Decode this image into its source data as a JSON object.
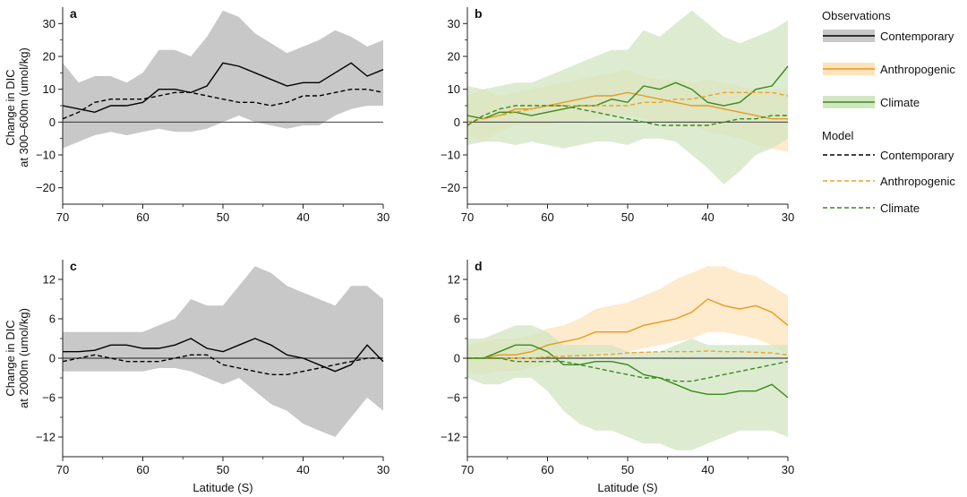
{
  "figure": {
    "xlabel": "Latitude (S)",
    "ylabel_top_line1": "Change in DIC",
    "ylabel_top_line2": "at 300–600m (umol/kg)",
    "ylabel_bottom_line1": "Change in DIC",
    "ylabel_bottom_line2": "at 2000m (umol/kg)"
  },
  "legend": {
    "obs_title": "Observations",
    "model_title": "Model",
    "obs_items": [
      {
        "label": "Contemporary",
        "color": "#000000",
        "band": "#c8c8c8"
      },
      {
        "label": "Anthropogenic",
        "color": "#e69a1c",
        "band": "#fde3bb"
      },
      {
        "label": "Climate",
        "color": "#3a8a1c",
        "band": "#d2e6c2"
      }
    ],
    "model_items": [
      {
        "label": "Contemporary",
        "color": "#000000"
      },
      {
        "label": "Anthropogenic",
        "color": "#f0a020"
      },
      {
        "label": "Climate",
        "color": "#3a8a1c"
      }
    ]
  },
  "chart_data": [
    {
      "type": "line",
      "panel": "a",
      "xlim": [
        70,
        30
      ],
      "ylim": [
        -25,
        35
      ],
      "yticks": [
        -20,
        -10,
        0,
        10,
        20,
        30
      ],
      "xticks": [
        70,
        60,
        50,
        40,
        30
      ],
      "x": [
        70,
        68,
        66,
        64,
        62,
        60,
        58,
        56,
        54,
        52,
        50,
        48,
        46,
        44,
        42,
        40,
        38,
        36,
        34,
        32,
        30
      ],
      "series": [
        {
          "name": "Observations Contemporary",
          "style": "solid",
          "color": "#000000",
          "band": "#c8c8c8",
          "values": [
            5,
            4,
            3,
            5,
            5,
            6,
            10,
            10,
            9,
            11,
            18,
            17,
            15,
            13,
            11,
            12,
            12,
            15,
            18,
            14,
            16
          ],
          "lower": [
            -8,
            -6,
            -4,
            -3,
            -4,
            -3,
            -2,
            -3,
            -3,
            -2,
            0,
            2,
            0,
            -1,
            -2,
            -1,
            -1,
            2,
            4,
            5,
            5
          ],
          "upper": [
            18,
            12,
            14,
            14,
            12,
            15,
            22,
            22,
            20,
            26,
            34,
            32,
            27,
            24,
            21,
            23,
            25,
            28,
            26,
            23,
            25
          ]
        },
        {
          "name": "Model Contemporary",
          "style": "dashed",
          "color": "#000000",
          "values": [
            1,
            3,
            6,
            7,
            7,
            7,
            8,
            9,
            9,
            8,
            7,
            6,
            6,
            5,
            6,
            8,
            8,
            9,
            10,
            10,
            9
          ]
        }
      ]
    },
    {
      "type": "line",
      "panel": "b",
      "xlim": [
        70,
        30
      ],
      "ylim": [
        -25,
        35
      ],
      "yticks": [
        -20,
        -10,
        0,
        10,
        20,
        30
      ],
      "xticks": [
        70,
        60,
        50,
        40,
        30
      ],
      "x": [
        70,
        68,
        66,
        64,
        62,
        60,
        58,
        56,
        54,
        52,
        50,
        48,
        46,
        44,
        42,
        40,
        38,
        36,
        34,
        32,
        30
      ],
      "series": [
        {
          "name": "Observations Anthropogenic",
          "style": "solid",
          "color": "#e69a1c",
          "band": "#fde3bb",
          "values": [
            2,
            1,
            2,
            4,
            4,
            5,
            6,
            7,
            8,
            8,
            9,
            8,
            7,
            6,
            5,
            5,
            4,
            3,
            2,
            1,
            1
          ],
          "lower": [
            -4,
            -6,
            -3,
            -1,
            -1,
            -1,
            0,
            0,
            1,
            2,
            2,
            1,
            0,
            -1,
            -1,
            -3,
            -4,
            -5,
            -7,
            -8,
            -9
          ],
          "upper": [
            8,
            10,
            8,
            9,
            10,
            11,
            12,
            13,
            14,
            15,
            16,
            14,
            13,
            13,
            12,
            13,
            12,
            11,
            10,
            10,
            10
          ]
        },
        {
          "name": "Observations Climate",
          "style": "solid",
          "color": "#3a8a1c",
          "band": "#d2e6c2",
          "values": [
            2,
            1,
            3,
            3,
            2,
            3,
            4,
            5,
            5,
            7,
            6,
            11,
            10,
            12,
            10,
            6,
            5,
            6,
            10,
            11,
            17
          ],
          "lower": [
            -7,
            -6,
            -6,
            -7,
            -6,
            -7,
            -8,
            -7,
            -6,
            -6,
            -7,
            -5,
            -5,
            -6,
            -10,
            -14,
            -19,
            -15,
            -10,
            -8,
            -5
          ],
          "upper": [
            11,
            10,
            11,
            12,
            12,
            14,
            16,
            18,
            20,
            22,
            22,
            28,
            26,
            30,
            34,
            30,
            26,
            24,
            26,
            28,
            31
          ]
        },
        {
          "name": "Model Anthropogenic",
          "style": "dashed",
          "color": "#f0a020",
          "values": [
            0,
            1,
            2,
            3,
            4,
            5,
            5,
            5,
            5,
            5,
            5,
            6,
            6,
            7,
            7,
            8,
            9,
            9,
            9,
            9,
            8
          ]
        },
        {
          "name": "Model Climate",
          "style": "dashed",
          "color": "#3a8a1c",
          "values": [
            -1,
            2,
            4,
            5,
            5,
            5,
            5,
            4,
            3,
            2,
            1,
            0,
            -1,
            -1,
            -1,
            -1,
            0,
            1,
            1,
            2,
            2
          ]
        }
      ]
    },
    {
      "type": "line",
      "panel": "c",
      "xlim": [
        70,
        30
      ],
      "ylim": [
        -15,
        15
      ],
      "yticks": [
        -12,
        -6,
        0,
        6,
        12
      ],
      "xticks": [
        70,
        60,
        50,
        40,
        30
      ],
      "x": [
        70,
        68,
        66,
        64,
        62,
        60,
        58,
        56,
        54,
        52,
        50,
        48,
        46,
        44,
        42,
        40,
        38,
        36,
        34,
        32,
        30
      ],
      "series": [
        {
          "name": "Observations Contemporary",
          "style": "solid",
          "color": "#000000",
          "band": "#c8c8c8",
          "values": [
            1,
            1,
            1.2,
            2,
            2,
            1.5,
            1.5,
            2,
            3,
            1.5,
            1,
            2,
            3,
            2,
            0.5,
            0,
            -1,
            -2,
            -1,
            2,
            -0.5
          ],
          "lower": [
            -2,
            -2,
            -2,
            -2,
            -2,
            -2,
            -1.5,
            -1.5,
            -2,
            -3,
            -4,
            -3,
            -5,
            -7,
            -8,
            -10,
            -11,
            -12,
            -9,
            -6,
            -8
          ],
          "upper": [
            4,
            4,
            4,
            4,
            4,
            4,
            5,
            6,
            9,
            8,
            8,
            11,
            14,
            13,
            11,
            10,
            9,
            8,
            11,
            11,
            9
          ]
        },
        {
          "name": "Model Contemporary",
          "style": "dashed",
          "color": "#000000",
          "values": [
            -0.5,
            0,
            0.5,
            0,
            -0.5,
            -0.5,
            -0.5,
            0,
            0.5,
            0.5,
            -1,
            -1.5,
            -2,
            -2.5,
            -2.5,
            -2,
            -1.5,
            -1,
            -0.5,
            0,
            0
          ]
        }
      ]
    },
    {
      "type": "line",
      "panel": "d",
      "xlim": [
        70,
        30
      ],
      "ylim": [
        -15,
        15
      ],
      "yticks": [
        -12,
        -6,
        0,
        6,
        12
      ],
      "xticks": [
        70,
        60,
        50,
        40,
        30
      ],
      "x": [
        70,
        68,
        66,
        64,
        62,
        60,
        58,
        56,
        54,
        52,
        50,
        48,
        46,
        44,
        42,
        40,
        38,
        36,
        34,
        32,
        30
      ],
      "series": [
        {
          "name": "Observations Anthropogenic",
          "style": "solid",
          "color": "#e69a1c",
          "band": "#fde3bb",
          "values": [
            0,
            0,
            0.5,
            0.5,
            1,
            2,
            2.5,
            3,
            4,
            4,
            4,
            5,
            5.5,
            6,
            7,
            9,
            8,
            7.5,
            8,
            7,
            5
          ],
          "lower": [
            -2,
            -2.5,
            -2,
            -2,
            -1.5,
            -1,
            0,
            0.5,
            1,
            1,
            1,
            1.5,
            2,
            2.5,
            3,
            4,
            4,
            3.5,
            3,
            2,
            0.5
          ],
          "upper": [
            2,
            2.5,
            3,
            3,
            3.5,
            4.5,
            5,
            6,
            7.5,
            8,
            8.5,
            9.5,
            10.5,
            12,
            13,
            14,
            14,
            13,
            12.5,
            11,
            9.5
          ]
        },
        {
          "name": "Observations Climate",
          "style": "solid",
          "color": "#3a8a1c",
          "band": "#d2e6c2",
          "values": [
            0,
            0,
            1,
            2,
            2,
            1,
            -1,
            -1,
            -0.5,
            -0.5,
            -1,
            -2.5,
            -3,
            -4,
            -5,
            -5.5,
            -5.5,
            -5,
            -5,
            -4,
            -6
          ],
          "lower": [
            -3,
            -4,
            -4,
            -3,
            -3,
            -5,
            -8,
            -10,
            -11,
            -11,
            -12,
            -13,
            -13,
            -14,
            -14,
            -13,
            -12,
            -11,
            -11,
            -11,
            -12
          ],
          "upper": [
            3,
            3,
            4,
            5,
            5,
            4,
            2,
            2,
            2,
            2,
            1,
            1,
            1,
            2,
            3,
            2,
            2,
            2,
            2,
            2,
            2
          ]
        },
        {
          "name": "Model Anthropogenic",
          "style": "dashed",
          "color": "#f0a020",
          "values": [
            0,
            0,
            0,
            0,
            0,
            0.2,
            0.3,
            0.4,
            0.5,
            0.6,
            0.8,
            0.9,
            1,
            1,
            1,
            1.1,
            1,
            1,
            0.9,
            0.8,
            0.5
          ]
        },
        {
          "name": "Model Climate",
          "style": "dashed",
          "color": "#3a8a1c",
          "values": [
            0,
            0,
            0,
            -0.5,
            -0.5,
            -0.5,
            -0.5,
            -1,
            -1.5,
            -2,
            -2.5,
            -3,
            -3,
            -3.5,
            -3.5,
            -3,
            -2.5,
            -2,
            -1.5,
            -1,
            -0.5
          ]
        }
      ]
    }
  ]
}
